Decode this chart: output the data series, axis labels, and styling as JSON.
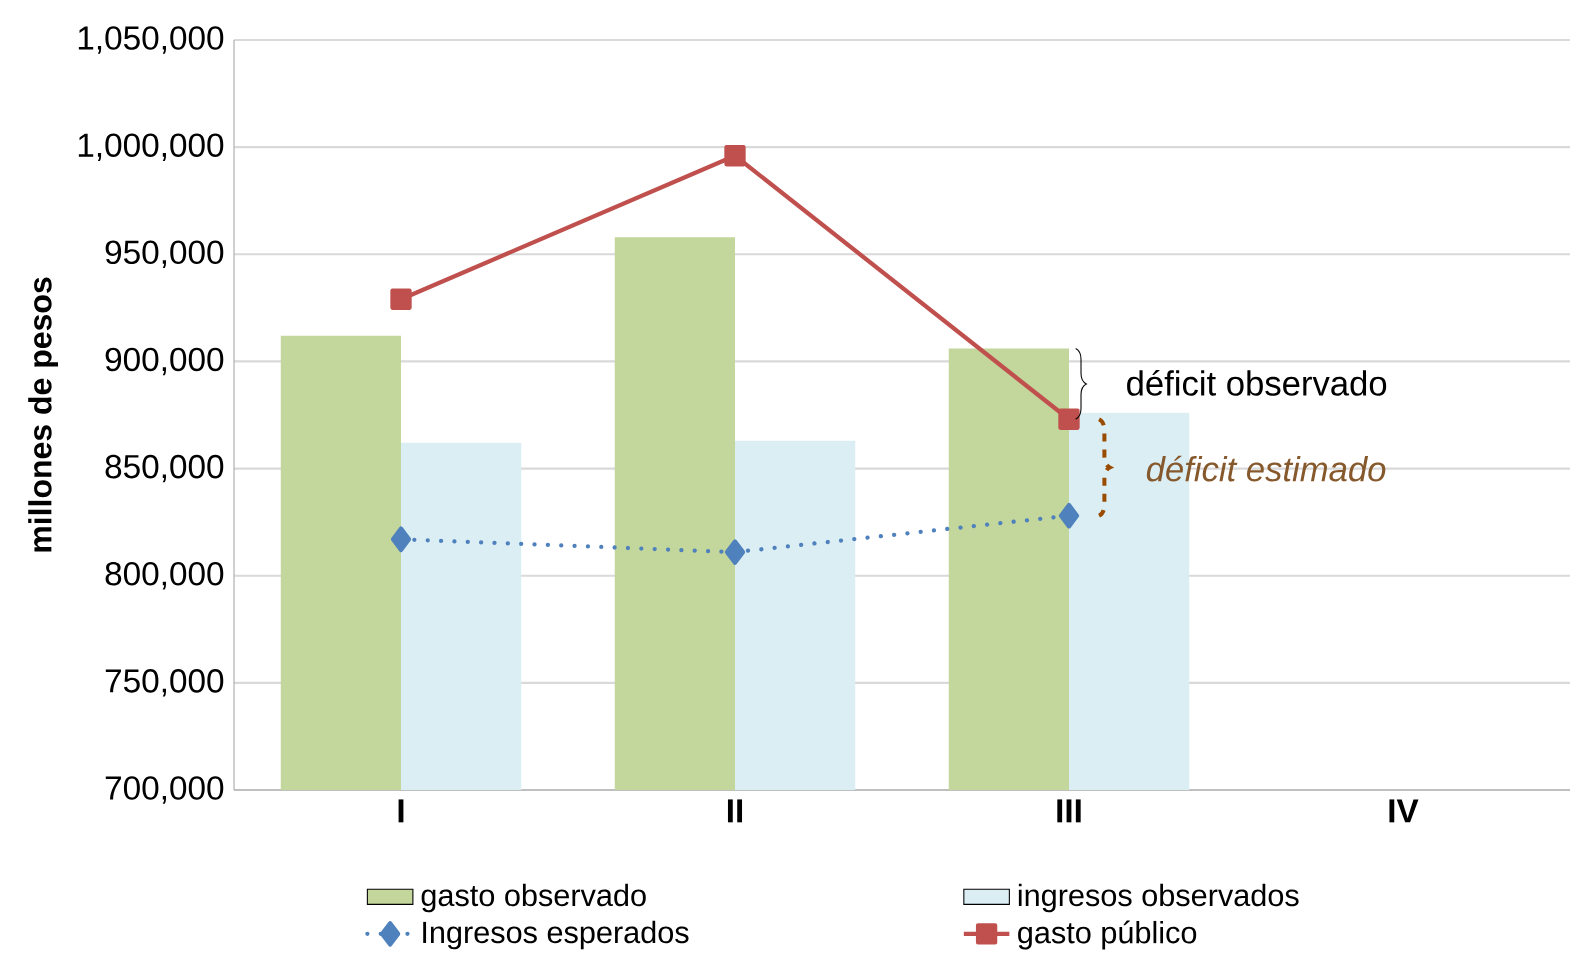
{
  "chart_data": {
    "type": "bar",
    "ylabel": "millones de pesos",
    "categories": [
      "I",
      "II",
      "III",
      "IV"
    ],
    "series": [
      {
        "name": "gasto observado",
        "color": "#c3d69b",
        "values": [
          912000,
          958000,
          906000,
          null
        ]
      },
      {
        "name": "ingresos observados",
        "color": "#dbeef4",
        "values": [
          862000,
          863000,
          876000,
          null
        ]
      },
      {
        "name": "Ingresos esperados",
        "type": "line",
        "color": "#4f81bd",
        "marker": "diamond",
        "line_style": "dotted",
        "values": [
          817000,
          811000,
          828000,
          null
        ]
      },
      {
        "name": "gasto público",
        "type": "line",
        "color": "#c0504d",
        "marker": "square",
        "line_style": "solid",
        "values": [
          929000,
          996000,
          873000,
          null
        ]
      }
    ],
    "ylim": [
      700000,
      1050000
    ],
    "yticks": [
      {
        "value": 700000,
        "label": "700,000"
      },
      {
        "value": 750000,
        "label": "750,000"
      },
      {
        "value": 800000,
        "label": "800,000"
      },
      {
        "value": 850000,
        "label": "850,000"
      },
      {
        "value": 900000,
        "label": "900,000"
      },
      {
        "value": 950000,
        "label": "950,000"
      },
      {
        "value": 1000000,
        "label": "1,000,000"
      },
      {
        "value": 1050000,
        "label": "1,050,000"
      }
    ],
    "grid": "y",
    "legend": "bottom",
    "annotations": [
      {
        "text": "déficit observado",
        "x": "III",
        "y": 890000
      },
      {
        "text": "déficit estimado",
        "x": "III",
        "y": 850000
      }
    ]
  }
}
